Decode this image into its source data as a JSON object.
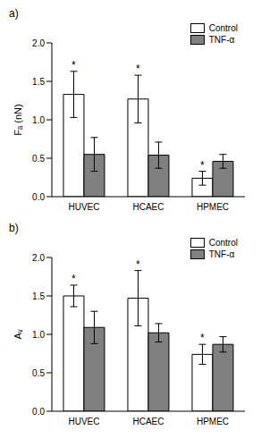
{
  "chart_data": [
    {
      "type": "bar",
      "title": "a)",
      "ylabel": "Fₐ (nN)",
      "categories": [
        "HUVEC",
        "HCAEC",
        "HPMEC"
      ],
      "series": [
        {
          "name": "Control",
          "color": "#ffffff",
          "values": [
            1.33,
            1.27,
            0.24
          ],
          "errors": [
            0.3,
            0.31,
            0.09
          ]
        },
        {
          "name": "TNF-α",
          "color": "#808080",
          "values": [
            0.55,
            0.54,
            0.46
          ],
          "errors": [
            0.22,
            0.17,
            0.09
          ]
        }
      ],
      "ylim": [
        0,
        2
      ],
      "yticks": [
        {
          "value": 0,
          "label": "0.0"
        },
        0.5,
        {
          "value": 1,
          "label": "1.0"
        },
        1.5,
        {
          "value": 2,
          "label": "2.0"
        }
      ],
      "legend": "upper right",
      "annotations": [
        {
          "text": "*",
          "series": "Control",
          "category": "HUVEC"
        },
        {
          "text": "*",
          "series": "Control",
          "category": "HCAEC"
        },
        {
          "text": "*",
          "series": "Control",
          "category": "HPMEC"
        }
      ]
    },
    {
      "type": "bar",
      "title": "b)",
      "ylabel": "Aᵥ",
      "categories": [
        "HUVEC",
        "HCAEC",
        "HPMEC"
      ],
      "series": [
        {
          "name": "Control",
          "color": "#ffffff",
          "values": [
            1.5,
            1.47,
            0.74
          ],
          "errors": [
            0.14,
            0.36,
            0.13
          ]
        },
        {
          "name": "TNF-α",
          "color": "#808080",
          "values": [
            1.09,
            1.02,
            0.87
          ],
          "errors": [
            0.21,
            0.12,
            0.1
          ]
        }
      ],
      "ylim": [
        0,
        2
      ],
      "yticks": [
        {
          "value": 0,
          "label": "0.0"
        },
        0.5,
        {
          "value": 1,
          "label": "1.0"
        },
        1.5,
        {
          "value": 2,
          "label": "2.0"
        }
      ],
      "legend": "upper right",
      "annotations": [
        {
          "text": "*",
          "series": "Control",
          "category": "HUVEC"
        },
        {
          "text": "*",
          "series": "Control",
          "category": "HCAEC"
        },
        {
          "text": "*",
          "series": "Control",
          "category": "HPMEC"
        }
      ]
    }
  ]
}
